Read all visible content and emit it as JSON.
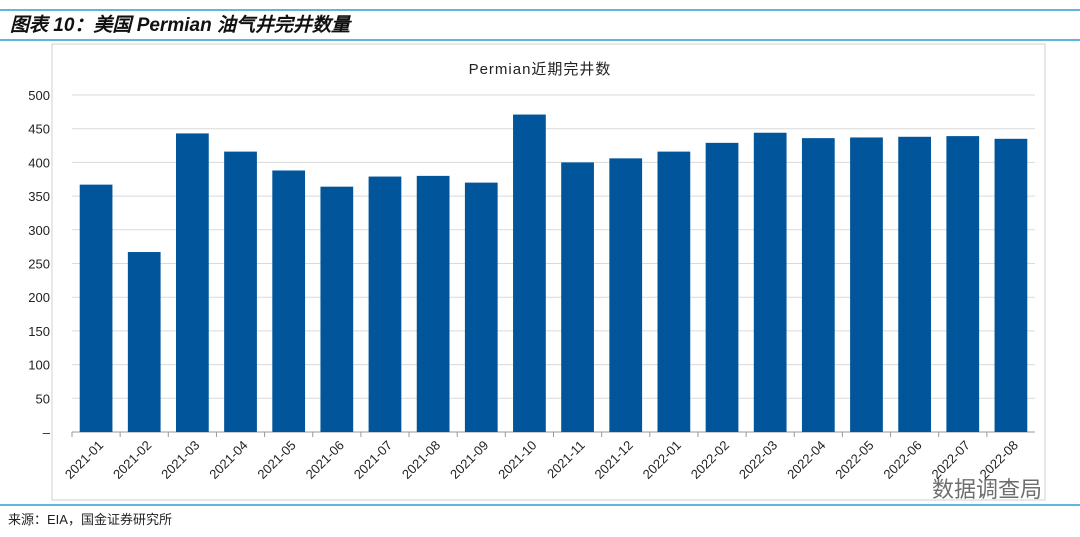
{
  "header": {
    "title": "图表 10：美国 Permian 油气井完井数量"
  },
  "chart_data": {
    "type": "bar",
    "title": "Permian近期完井数",
    "categories": [
      "2021-01",
      "2021-02",
      "2021-03",
      "2021-04",
      "2021-05",
      "2021-06",
      "2021-07",
      "2021-08",
      "2021-09",
      "2021-10",
      "2021-11",
      "2021-12",
      "2022-01",
      "2022-02",
      "2022-03",
      "2022-04",
      "2022-05",
      "2022-06",
      "2022-07",
      "2022-08"
    ],
    "values": [
      367,
      267,
      443,
      416,
      388,
      364,
      379,
      380,
      370,
      471,
      400,
      406,
      416,
      429,
      444,
      436,
      437,
      438,
      439,
      435
    ],
    "color": "#00559b",
    "ylim": [
      0,
      500
    ],
    "yticks": [
      {
        "value": 0,
        "label": "–"
      },
      50,
      100,
      150,
      200,
      250,
      300,
      350,
      400,
      450,
      500
    ],
    "grid": true
  },
  "footer": {
    "source": "来源：EIA，国金证券研究所",
    "watermark": "数据调查局"
  }
}
